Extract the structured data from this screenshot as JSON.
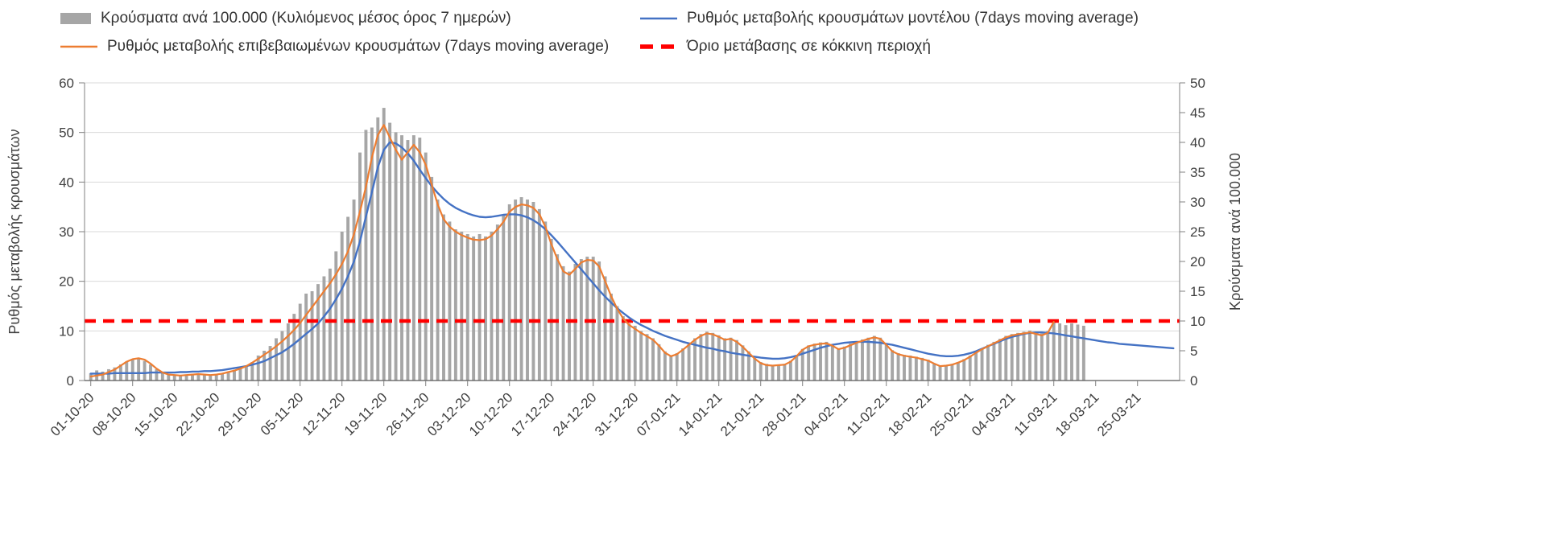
{
  "legend": {
    "bars": "Κρούσματα ανά 100.000 (Κυλιόμενος μέσος όρος 7 ημερών)",
    "model": "Ρυθμός μεταβολής κρουσμάτων μοντέλου (7days moving average)",
    "confirmed": "Ρυθμός μεταβολής επιβεβαιωμένων κρουσμάτων (7days moving average)",
    "threshold": "Όριο μετάβασης σε κόκκινη περιοχή"
  },
  "axes": {
    "left_title": "Ρυθμός μεταβολής κρουσμάτων",
    "right_title": "Κρούσματα ανά 100.000",
    "left_ticks": [
      0,
      10,
      20,
      30,
      40,
      50,
      60
    ],
    "right_ticks": [
      0,
      5,
      10,
      15,
      20,
      25,
      30,
      35,
      40,
      45,
      50
    ]
  },
  "colors": {
    "bars": "#a6a6a6",
    "model": "#4472c4",
    "confirmed": "#ed7d31",
    "threshold": "#ff0000",
    "grid": "#d9d9d9",
    "axis": "#808080",
    "axis_bottom": "#595959",
    "text": "#404040"
  },
  "chart_data": {
    "type": "combo_bar_line",
    "title": "",
    "n_days": 182,
    "x_tick_positions": [
      0,
      7,
      14,
      21,
      28,
      35,
      42,
      49,
      56,
      63,
      70,
      77,
      84,
      91,
      98,
      105,
      112,
      119,
      126,
      133,
      140,
      147,
      154,
      161,
      168,
      175
    ],
    "x_tick_labels": [
      "01-10-20",
      "08-10-20",
      "15-10-20",
      "22-10-20",
      "29-10-20",
      "05-11-20",
      "12-11-20",
      "19-11-20",
      "26-11-20",
      "03-12-20",
      "10-12-20",
      "17-12-20",
      "24-12-20",
      "31-12-20",
      "07-01-21",
      "14-01-21",
      "21-01-21",
      "28-01-21",
      "04-02-21",
      "11-02-21",
      "18-02-21",
      "25-02-21",
      "04-03-21",
      "11-03-21",
      "18-03-21",
      "25-03-21"
    ],
    "left_axis": {
      "label": "Ρυθμός μεταβολής κρουσμάτων",
      "range": [
        0,
        60
      ]
    },
    "right_axis": {
      "label": "Κρούσματα ανά 100.000",
      "range": [
        0,
        50
      ]
    },
    "threshold": {
      "label": "Όριο μετάβασης σε κόκκινη περιοχή",
      "value": 10,
      "axis": "right",
      "style": "dashed",
      "color": "#ff0000"
    },
    "series": [
      {
        "name": "Κρούσματα ανά 100.000 (Κυλιόμενος μέσος όρος 7 ημερών)",
        "type": "bar",
        "axis": "right",
        "color": "#a6a6a6",
        "values": [
          1.2,
          1.7,
          1.5,
          1.9,
          2.2,
          2.7,
          3.2,
          3.5,
          3.7,
          3.3,
          2.7,
          1.9,
          1.3,
          1.1,
          1.0,
          0.9,
          1.0,
          1.1,
          1.2,
          1.1,
          1.0,
          1.1,
          1.2,
          1.5,
          1.8,
          2.1,
          2.5,
          3.1,
          4.2,
          5.0,
          5.8,
          7.1,
          8.3,
          9.6,
          11.2,
          12.9,
          14.6,
          15.0,
          16.2,
          17.5,
          18.8,
          21.7,
          25.0,
          27.5,
          30.4,
          38.3,
          42.1,
          42.5,
          44.2,
          45.8,
          43.3,
          41.7,
          41.2,
          40.4,
          41.2,
          40.8,
          38.3,
          34.2,
          30.4,
          27.9,
          26.7,
          25.4,
          25.0,
          24.6,
          24.2,
          24.6,
          24.2,
          25.0,
          26.2,
          27.9,
          29.6,
          30.4,
          30.8,
          30.4,
          30.0,
          28.8,
          26.7,
          23.8,
          21.2,
          19.2,
          18.3,
          19.6,
          20.4,
          20.8,
          20.8,
          20.0,
          17.5,
          14.6,
          12.5,
          10.8,
          9.6,
          9.2,
          8.3,
          7.8,
          7.1,
          6.1,
          4.9,
          4.2,
          4.6,
          5.4,
          6.2,
          7.1,
          7.8,
          8.2,
          8.0,
          7.6,
          7.1,
          7.2,
          6.8,
          5.9,
          4.9,
          3.8,
          3.1,
          2.8,
          2.6,
          2.7,
          2.8,
          3.3,
          4.2,
          5.3,
          5.9,
          6.2,
          6.4,
          6.5,
          6.1,
          5.4,
          5.7,
          6.2,
          6.6,
          6.9,
          7.2,
          7.5,
          7.2,
          6.2,
          5.1,
          4.6,
          4.3,
          4.2,
          4.0,
          3.8,
          3.5,
          2.9,
          2.5,
          2.6,
          2.8,
          3.1,
          3.6,
          4.2,
          4.8,
          5.4,
          6.0,
          6.5,
          7.0,
          7.5,
          7.8,
          8.0,
          8.2,
          8.4,
          8.2,
          7.9,
          8.3,
          10.0,
          9.6,
          9.3,
          9.6,
          9.4,
          9.2,
          null,
          null,
          null,
          null,
          null,
          null,
          null,
          null,
          null,
          null,
          null,
          null,
          null,
          null,
          null
        ]
      },
      {
        "name": "Ρυθμός μεταβολής κρουσμάτων μοντέλου (7days moving average)",
        "type": "line",
        "axis": "left",
        "color": "#4472c4",
        "values": [
          1.4,
          1.4,
          1.4,
          1.4,
          1.5,
          1.5,
          1.5,
          1.5,
          1.5,
          1.5,
          1.6,
          1.6,
          1.6,
          1.6,
          1.6,
          1.7,
          1.7,
          1.8,
          1.8,
          1.9,
          1.9,
          2.0,
          2.1,
          2.3,
          2.5,
          2.7,
          2.9,
          3.2,
          3.5,
          3.9,
          4.5,
          5.1,
          5.7,
          6.5,
          7.4,
          8.4,
          9.4,
          10.4,
          11.5,
          12.9,
          14.5,
          16.4,
          18.5,
          21.0,
          24.0,
          28.0,
          33.0,
          38.0,
          43.0,
          46.5,
          48.0,
          47.8,
          47.0,
          45.8,
          44.3,
          42.5,
          40.8,
          39.2,
          37.8,
          36.6,
          35.6,
          34.8,
          34.2,
          33.7,
          33.3,
          33.0,
          32.9,
          33.0,
          33.2,
          33.4,
          33.5,
          33.5,
          33.3,
          32.9,
          32.3,
          31.5,
          30.5,
          29.3,
          28.0,
          26.6,
          25.2,
          23.8,
          22.4,
          21.0,
          19.6,
          18.2,
          16.9,
          15.7,
          14.6,
          13.6,
          12.7,
          11.9,
          11.2,
          10.6,
          10.0,
          9.5,
          9.0,
          8.6,
          8.2,
          7.8,
          7.5,
          7.2,
          6.9,
          6.6,
          6.4,
          6.1,
          5.9,
          5.6,
          5.4,
          5.2,
          5.0,
          4.8,
          4.6,
          4.5,
          4.4,
          4.4,
          4.5,
          4.7,
          5.0,
          5.4,
          5.8,
          6.2,
          6.6,
          6.9,
          7.2,
          7.4,
          7.6,
          7.7,
          7.8,
          7.8,
          7.8,
          7.7,
          7.6,
          7.4,
          7.2,
          6.9,
          6.6,
          6.3,
          6.0,
          5.7,
          5.4,
          5.2,
          5.0,
          4.9,
          4.9,
          5.0,
          5.2,
          5.5,
          5.9,
          6.4,
          6.9,
          7.4,
          7.9,
          8.4,
          8.8,
          9.1,
          9.4,
          9.6,
          9.7,
          9.7,
          9.6,
          9.5,
          9.3,
          9.1,
          8.9,
          8.7,
          8.5,
          8.3,
          8.1,
          7.9,
          7.7,
          7.6,
          7.4,
          7.3,
          7.2,
          7.1,
          7.0,
          6.9,
          6.8,
          6.7,
          6.6,
          6.5
        ]
      },
      {
        "name": "Ρυθμός μεταβολής επιβεβαιωμένων κρουσμάτων (7days moving average)",
        "type": "line",
        "axis": "left",
        "color": "#ed7d31",
        "values": [
          0.8,
          1.0,
          1.2,
          1.7,
          2.2,
          3.0,
          3.8,
          4.3,
          4.5,
          4.2,
          3.4,
          2.4,
          1.6,
          1.2,
          1.1,
          1.0,
          1.1,
          1.2,
          1.3,
          1.2,
          1.1,
          1.2,
          1.4,
          1.7,
          2.0,
          2.4,
          2.9,
          3.6,
          4.4,
          5.2,
          6.0,
          6.9,
          7.9,
          9.0,
          10.2,
          11.6,
          13.2,
          14.8,
          16.4,
          18.0,
          19.6,
          21.4,
          23.5,
          26.0,
          29.5,
          34.0,
          39.0,
          45.0,
          49.5,
          51.5,
          49.0,
          46.5,
          44.5,
          46.0,
          47.5,
          46.0,
          43.5,
          39.5,
          35.5,
          32.5,
          31.0,
          30.0,
          29.3,
          28.8,
          28.4,
          28.3,
          28.5,
          29.2,
          30.5,
          32.0,
          34.0,
          35.0,
          35.5,
          35.3,
          34.8,
          33.5,
          31.0,
          27.5,
          24.5,
          22.0,
          21.3,
          22.5,
          23.8,
          24.3,
          24.2,
          23.0,
          20.0,
          17.0,
          14.5,
          12.5,
          11.2,
          10.4,
          9.6,
          8.9,
          8.2,
          7.0,
          5.6,
          4.9,
          5.3,
          6.2,
          7.2,
          8.2,
          9.0,
          9.5,
          9.3,
          8.8,
          8.2,
          8.4,
          7.8,
          6.8,
          5.6,
          4.4,
          3.5,
          3.1,
          3.0,
          3.1,
          3.2,
          3.8,
          4.9,
          6.2,
          6.9,
          7.2,
          7.4,
          7.5,
          7.0,
          6.3,
          6.6,
          7.1,
          7.6,
          8.0,
          8.4,
          8.7,
          8.4,
          7.2,
          5.9,
          5.3,
          5.0,
          4.8,
          4.6,
          4.3,
          4.0,
          3.4,
          2.9,
          3.0,
          3.2,
          3.6,
          4.1,
          4.8,
          5.6,
          6.3,
          6.9,
          7.5,
          8.1,
          8.7,
          9.1,
          9.3,
          9.5,
          9.7,
          9.4,
          9.1,
          9.6,
          11.8,
          null,
          null,
          null,
          null,
          null,
          null,
          null,
          null,
          null,
          null,
          null,
          null,
          null,
          null,
          null,
          null,
          null,
          null,
          null,
          null
        ]
      }
    ],
    "layout": {
      "grid": "horizontal",
      "legend_position": "top"
    }
  }
}
